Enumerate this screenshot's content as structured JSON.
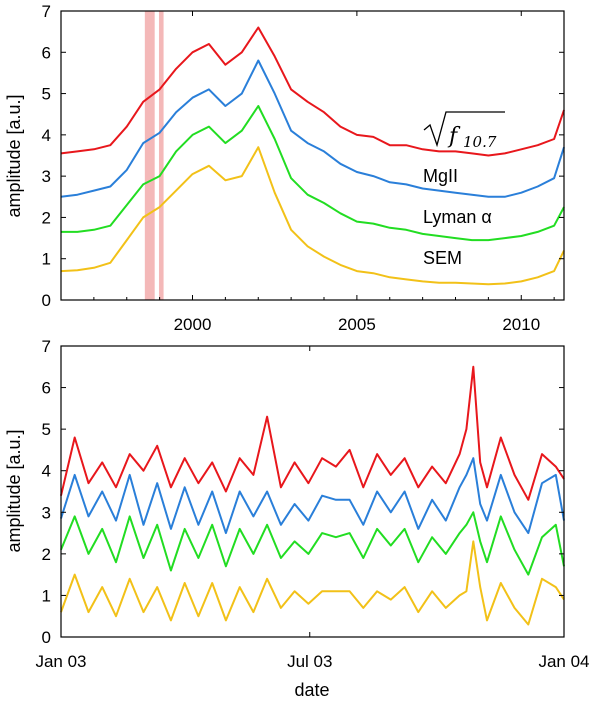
{
  "colors": {
    "f107": "#e8171c",
    "mgii": "#2a7fd9",
    "lyman": "#22dd22",
    "sem": "#f2c118",
    "highlight": "#f4b8b8"
  },
  "chart_data": [
    {
      "type": "line",
      "ylabel": "amplitude [a.u.]",
      "xlabel": "",
      "xlim": [
        1996.0,
        2011.3
      ],
      "ylim": [
        0,
        7
      ],
      "yticks": [
        "0",
        "1",
        "2",
        "3",
        "4",
        "5",
        "6",
        "7"
      ],
      "xticks": [
        {
          "value": 2000,
          "label": "2000"
        },
        {
          "value": 2005,
          "label": "2005"
        },
        {
          "value": 2010,
          "label": "2010"
        }
      ],
      "highlight_spans": [
        [
          1998.55,
          1998.85
        ],
        [
          1998.98,
          1999.12
        ]
      ],
      "labels": {
        "f107_sqrt": "f",
        "f107_sub": "10.7",
        "mgii": "MgII",
        "lyman": "Lyman α",
        "sem": "SEM"
      },
      "x": [
        1996.0,
        1996.5,
        1997.0,
        1997.5,
        1998.0,
        1998.5,
        1999.0,
        1999.5,
        2000.0,
        2000.5,
        2001.0,
        2001.5,
        2002.0,
        2002.5,
        2003.0,
        2003.5,
        2004.0,
        2004.5,
        2005.0,
        2005.5,
        2006.0,
        2006.5,
        2007.0,
        2007.5,
        2008.0,
        2008.5,
        2009.0,
        2009.5,
        2010.0,
        2010.5,
        2011.0,
        2011.3
      ],
      "series": [
        {
          "name": "sqrt(f10.7)",
          "color_key": "f107",
          "values": [
            3.55,
            3.6,
            3.65,
            3.75,
            4.2,
            4.8,
            5.1,
            5.6,
            6.0,
            6.2,
            5.7,
            6.0,
            6.6,
            5.9,
            5.1,
            4.8,
            4.55,
            4.2,
            4.0,
            3.95,
            3.75,
            3.75,
            3.65,
            3.6,
            3.6,
            3.55,
            3.5,
            3.55,
            3.65,
            3.75,
            3.9,
            4.6
          ]
        },
        {
          "name": "MgII",
          "color_key": "mgii",
          "values": [
            2.5,
            2.55,
            2.65,
            2.75,
            3.15,
            3.8,
            4.05,
            4.55,
            4.9,
            5.1,
            4.7,
            5.0,
            5.8,
            5.0,
            4.1,
            3.8,
            3.6,
            3.3,
            3.1,
            3.0,
            2.85,
            2.8,
            2.7,
            2.65,
            2.6,
            2.55,
            2.5,
            2.5,
            2.6,
            2.75,
            2.95,
            3.7
          ]
        },
        {
          "name": "Lyman α",
          "color_key": "lyman",
          "values": [
            1.65,
            1.65,
            1.7,
            1.8,
            2.3,
            2.8,
            3.0,
            3.6,
            4.0,
            4.2,
            3.8,
            4.1,
            4.7,
            3.9,
            2.95,
            2.55,
            2.35,
            2.1,
            1.9,
            1.85,
            1.75,
            1.7,
            1.6,
            1.55,
            1.5,
            1.45,
            1.45,
            1.5,
            1.55,
            1.65,
            1.8,
            2.25
          ]
        },
        {
          "name": "SEM",
          "color_key": "sem",
          "values": [
            0.7,
            0.72,
            0.78,
            0.9,
            1.45,
            2.0,
            2.25,
            2.65,
            3.05,
            3.25,
            2.9,
            3.0,
            3.7,
            2.6,
            1.7,
            1.3,
            1.05,
            0.85,
            0.7,
            0.65,
            0.55,
            0.5,
            0.45,
            0.42,
            0.42,
            0.4,
            0.38,
            0.4,
            0.45,
            0.55,
            0.7,
            1.2
          ]
        }
      ]
    },
    {
      "type": "line",
      "ylabel": "amplitude [a.u.]",
      "xlabel": "date",
      "xlim": [
        0,
        366
      ],
      "ylim": [
        0,
        7
      ],
      "yticks": [
        "0",
        "1",
        "2",
        "3",
        "4",
        "5",
        "6",
        "7"
      ],
      "xticks": [
        {
          "value": 0,
          "label": "Jan 03"
        },
        {
          "value": 181,
          "label": "Jul 03"
        },
        {
          "value": 366,
          "label": "Jan 04"
        }
      ],
      "x": [
        0,
        10,
        20,
        30,
        40,
        50,
        60,
        70,
        80,
        90,
        100,
        110,
        120,
        130,
        140,
        150,
        160,
        170,
        180,
        190,
        200,
        210,
        220,
        230,
        240,
        250,
        260,
        270,
        280,
        290,
        295,
        300,
        305,
        310,
        320,
        330,
        340,
        350,
        360,
        366
      ],
      "series": [
        {
          "name": "sqrt(f10.7)",
          "color_key": "f107",
          "values": [
            3.4,
            4.8,
            3.7,
            4.2,
            3.6,
            4.4,
            4.0,
            4.6,
            3.6,
            4.3,
            3.7,
            4.2,
            3.5,
            4.3,
            3.9,
            5.3,
            3.6,
            4.2,
            3.7,
            4.3,
            4.1,
            4.5,
            3.6,
            4.4,
            3.9,
            4.3,
            3.6,
            4.1,
            3.7,
            4.4,
            5.0,
            6.5,
            4.2,
            3.6,
            4.8,
            3.9,
            3.3,
            4.4,
            4.1,
            3.8
          ]
        },
        {
          "name": "MgII",
          "color_key": "mgii",
          "values": [
            2.85,
            3.9,
            2.9,
            3.5,
            2.8,
            3.9,
            2.7,
            3.7,
            2.6,
            3.6,
            2.7,
            3.5,
            2.5,
            3.5,
            2.9,
            3.5,
            2.7,
            3.2,
            2.8,
            3.4,
            3.3,
            3.3,
            2.7,
            3.5,
            3.0,
            3.5,
            2.6,
            3.3,
            2.8,
            3.6,
            3.9,
            4.3,
            3.2,
            2.8,
            3.9,
            3.0,
            2.5,
            3.7,
            3.9,
            2.8
          ]
        },
        {
          "name": "Lyman α",
          "color_key": "lyman",
          "values": [
            2.1,
            2.9,
            2.0,
            2.6,
            1.8,
            2.9,
            1.9,
            2.7,
            1.6,
            2.6,
            1.9,
            2.7,
            1.7,
            2.6,
            2.0,
            2.7,
            1.9,
            2.3,
            2.0,
            2.5,
            2.4,
            2.5,
            1.9,
            2.6,
            2.2,
            2.6,
            1.8,
            2.4,
            2.0,
            2.5,
            2.7,
            3.0,
            2.3,
            1.8,
            2.9,
            2.1,
            1.5,
            2.4,
            2.7,
            1.7
          ]
        },
        {
          "name": "SEM",
          "color_key": "sem",
          "values": [
            0.6,
            1.5,
            0.6,
            1.2,
            0.5,
            1.4,
            0.6,
            1.2,
            0.4,
            1.3,
            0.5,
            1.3,
            0.4,
            1.2,
            0.6,
            1.4,
            0.7,
            1.1,
            0.8,
            1.1,
            1.1,
            1.1,
            0.7,
            1.1,
            0.9,
            1.2,
            0.6,
            1.1,
            0.7,
            1.0,
            1.1,
            2.3,
            1.2,
            0.4,
            1.3,
            0.7,
            0.3,
            1.4,
            1.2,
            0.9
          ]
        }
      ]
    }
  ]
}
